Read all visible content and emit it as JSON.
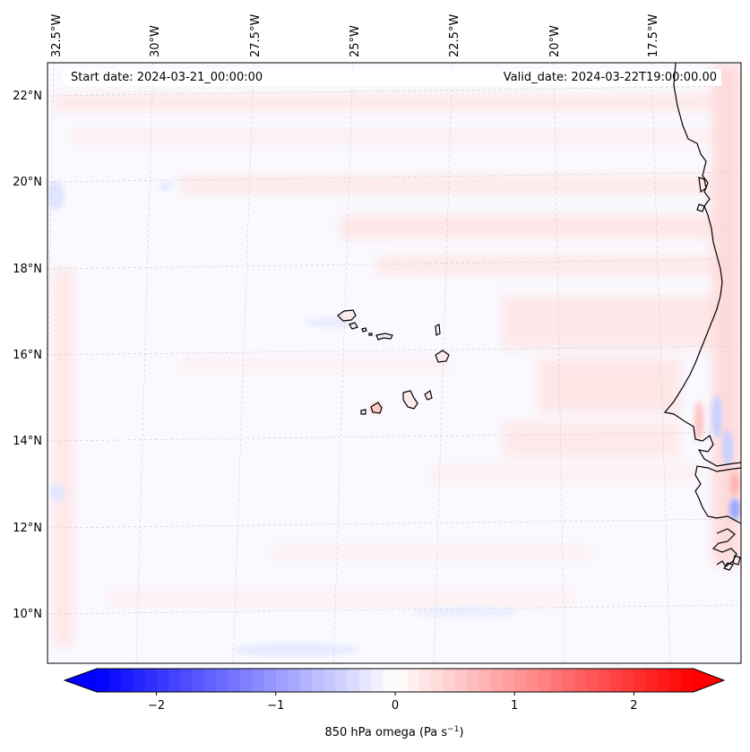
{
  "header": {
    "start_label": "Start date: 2024-03-21_00:00:00",
    "valid_label": "Valid_date: 2024-03-22T19:00:00.00"
  },
  "map": {
    "longitude_labels": [
      "32.5°W",
      "30°W",
      "27.5°W",
      "25°W",
      "22.5°W",
      "20°W",
      "17.5°W"
    ],
    "latitude_labels": [
      "22°N",
      "20°N",
      "18°N",
      "16°N",
      "14°N",
      "12°N",
      "10°N"
    ],
    "gridlines": "dashed"
  },
  "colorbar": {
    "label": "850 hPa omega (Pa s",
    "label_sup": "−1",
    "label_close": ")",
    "ticks": [
      {
        "value": -2,
        "text": "−2"
      },
      {
        "value": -1,
        "text": "−1"
      },
      {
        "value": 0,
        "text": "0"
      },
      {
        "value": 1,
        "text": "1"
      },
      {
        "value": 2,
        "text": "2"
      }
    ],
    "range": [
      -2.5,
      2.5
    ],
    "extend": "both",
    "cmap": "bwr",
    "colors": {
      "low": "#0000ff",
      "mid": "#ffffff",
      "high": "#ff0000"
    }
  }
}
